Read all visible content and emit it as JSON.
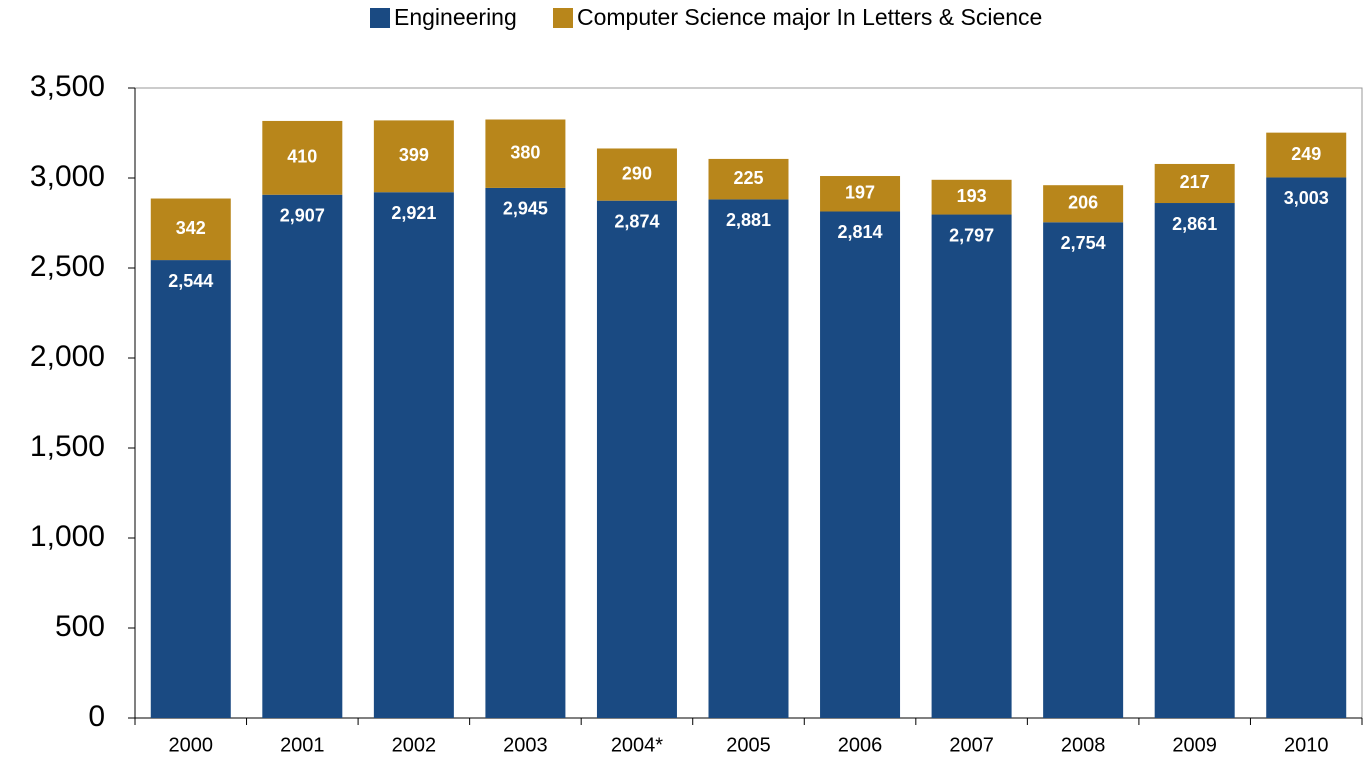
{
  "chart_data": {
    "type": "stacked_bar",
    "categories": [
      "2000",
      "2001",
      "2002",
      "2003",
      "2004*",
      "2005",
      "2006",
      "2007",
      "2008",
      "2009",
      "2010"
    ],
    "series": [
      {
        "name": "Engineering",
        "color": "#1a4a82",
        "values": [
          2544,
          2907,
          2921,
          2945,
          2874,
          2881,
          2814,
          2797,
          2754,
          2861,
          3003
        ],
        "value_labels": [
          "2,544",
          "2,907",
          "2,921",
          "2,945",
          "2,874",
          "2,881",
          "2,814",
          "2,797",
          "2,754",
          "2,861",
          "3,003"
        ]
      },
      {
        "name": "Computer Science major In Letters & Science",
        "color": "#b8861b",
        "values": [
          342,
          410,
          399,
          380,
          290,
          225,
          197,
          193,
          206,
          217,
          249
        ]
      }
    ],
    "ylim": [
      0,
      3500
    ],
    "yticks": [
      0,
      500,
      {
        "value": 1000,
        "label": "1,000"
      },
      {
        "value": 1500,
        "label": "1,500"
      },
      {
        "value": 2000,
        "label": "2,000"
      },
      {
        "value": 2500,
        "label": "2,500"
      },
      {
        "value": 3000,
        "label": "3,000"
      },
      {
        "value": 3500,
        "label": "3,500"
      }
    ],
    "legend": "top"
  }
}
